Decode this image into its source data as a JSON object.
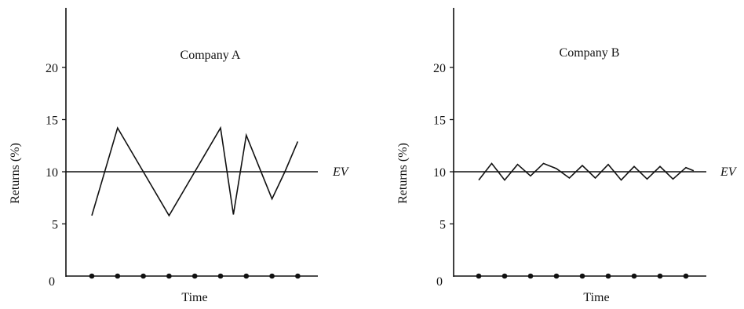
{
  "chart_data": [
    {
      "type": "line",
      "title": "Company A",
      "xlabel": "Time",
      "ylabel": "Returns (%)",
      "ylim": [
        0,
        25
      ],
      "yticks": [
        0,
        5,
        10,
        15,
        20
      ],
      "ytick_labels": [
        "0",
        "5",
        "10",
        "15",
        "20"
      ],
      "x_markers": [
        1,
        2,
        3,
        4,
        5,
        6,
        7,
        8,
        9
      ],
      "reference_line": {
        "label": "EV",
        "value": 10
      },
      "series": [
        {
          "x": [
            1,
            2,
            3,
            4,
            5,
            6,
            6.5,
            7,
            8,
            8.5,
            9
          ],
          "values": [
            5.8,
            14.2,
            10,
            5.8,
            10,
            14.2,
            5.9,
            13.5,
            7.4,
            10,
            12.9
          ]
        }
      ]
    },
    {
      "type": "line",
      "title": "Company B",
      "xlabel": "Time",
      "ylabel": "Returns (%)",
      "ylim": [
        0,
        25
      ],
      "yticks": [
        0,
        5,
        10,
        15,
        20
      ],
      "ytick_labels": [
        "0",
        "5",
        "10",
        "15",
        "20"
      ],
      "x_markers": [
        1,
        2,
        3,
        4,
        5,
        6,
        7,
        8,
        9
      ],
      "reference_line": {
        "label": "EV",
        "value": 10
      },
      "series": [
        {
          "x": [
            1,
            1.5,
            2,
            2.5,
            3,
            3.5,
            4,
            4.5,
            5,
            5.5,
            6,
            6.5,
            7,
            7.5,
            8,
            8.5,
            9,
            9.3
          ],
          "values": [
            9.2,
            10.8,
            9.2,
            10.7,
            9.6,
            10.8,
            10.3,
            9.4,
            10.6,
            9.4,
            10.7,
            9.2,
            10.5,
            9.3,
            10.5,
            9.3,
            10.4,
            10.1
          ]
        }
      ]
    }
  ]
}
